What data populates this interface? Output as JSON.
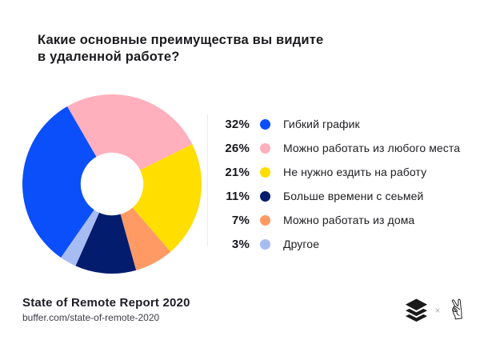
{
  "chart_data": {
    "type": "donut",
    "title": "Какие основные преимущества вы видите\nв удаленной работе?",
    "legend_position": "right",
    "start_angle_deg": -30,
    "inner_radius_ratio": 0.35,
    "categories": [
      "Гибкий график",
      "Можно работать из любого места",
      "Не нужно ездить на работу",
      "Больше времени с сеьмей",
      "Можно работать из дома",
      "Другое"
    ],
    "values": [
      32,
      26,
      21,
      11,
      7,
      3
    ],
    "segments": [
      {
        "label": "Гибкий график",
        "percent": 32,
        "percent_label": "32%",
        "color": "#0b4ffa"
      },
      {
        "label": "Можно работать из любого места",
        "percent": 26,
        "percent_label": "26%",
        "color": "#ffb0bc"
      },
      {
        "label": "Не нужно ездить на работу",
        "percent": 21,
        "percent_label": "21%",
        "color": "#ffde00"
      },
      {
        "label": "Больше времени с сеьмей",
        "percent": 11,
        "percent_label": "11%",
        "color": "#031c6e"
      },
      {
        "label": "Можно работать из дома",
        "percent": 7,
        "percent_label": "7%",
        "color": "#ff9a64"
      },
      {
        "label": "Другое",
        "percent": 3,
        "percent_label": "3%",
        "color": "#a8bcf4"
      }
    ],
    "draw_order": [
      1,
      2,
      4,
      3,
      5,
      0
    ],
    "hole_color": "#ffffff"
  },
  "footer": {
    "report_title": "State of Remote Report 2020",
    "url": "buffer.com/state-of-remote-2020",
    "logo_separator": "×",
    "peace_glyph": "✌"
  }
}
